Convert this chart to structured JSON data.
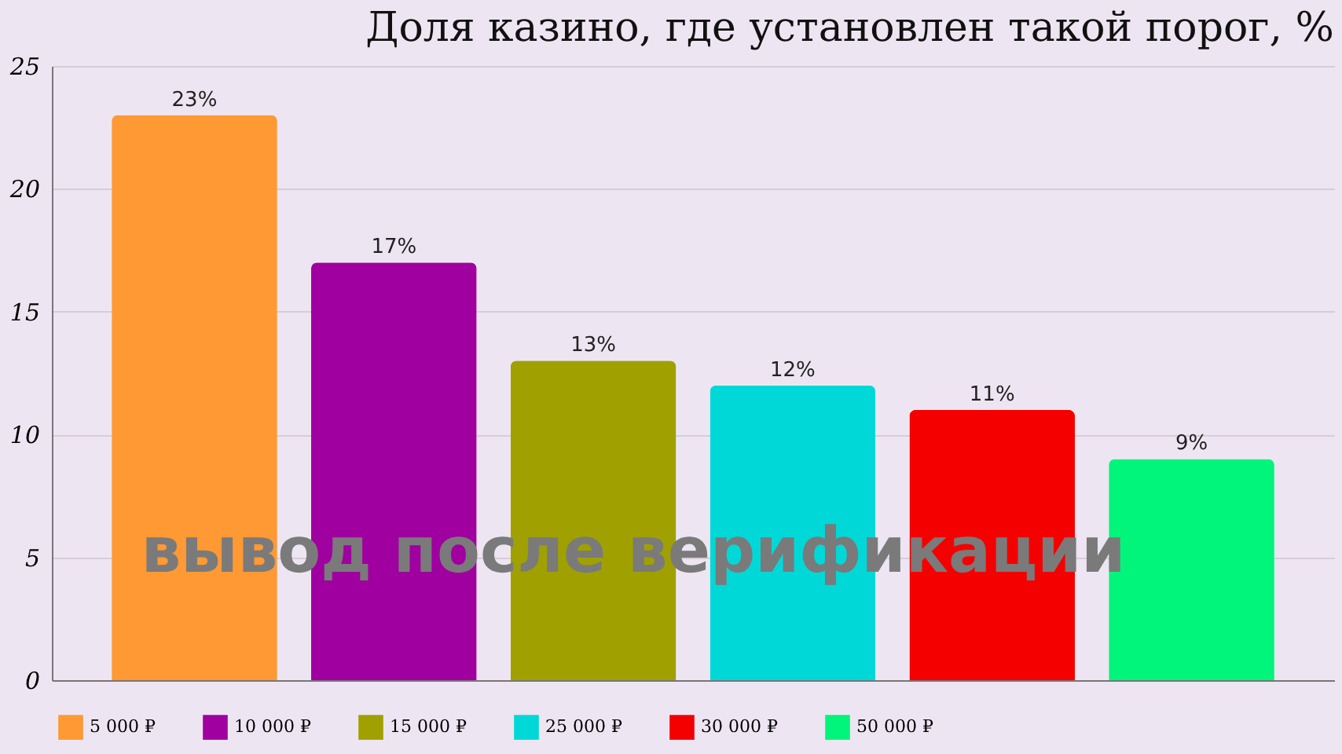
{
  "chart_data": {
    "type": "bar",
    "title": "Доля казино, где установлен такой порог, %",
    "categories": [
      null,
      null,
      null,
      null,
      null,
      null
    ],
    "series": [
      {
        "name": "5 000 ₽",
        "color": "#ff9933",
        "values": [
          23,
          null,
          null,
          null,
          null,
          null
        ],
        "value_labels": [
          "23%",
          null,
          null,
          null,
          null,
          null
        ]
      },
      {
        "name": "10 000 ₽",
        "color": "#a000a0",
        "values": [
          null,
          17,
          null,
          null,
          null,
          null
        ],
        "value_labels": [
          null,
          "17%",
          null,
          null,
          null,
          null
        ]
      },
      {
        "name": "15 000 ₽",
        "color": "#a0a000",
        "values": [
          null,
          null,
          13,
          null,
          null,
          null
        ],
        "value_labels": [
          null,
          null,
          "13%",
          null,
          null,
          null
        ]
      },
      {
        "name": "25 000 ₽",
        "color": "#00d8d8",
        "values": [
          null,
          null,
          null,
          12,
          null,
          null
        ],
        "value_labels": [
          null,
          null,
          null,
          "12%",
          null,
          null
        ]
      },
      {
        "name": "30 000 ₽",
        "color": "#f50000",
        "values": [
          null,
          null,
          null,
          null,
          11,
          null
        ],
        "value_labels": [
          null,
          null,
          null,
          null,
          "11%",
          null
        ]
      },
      {
        "name": "50 000 ₽",
        "color": "#00f57a",
        "values": [
          null,
          null,
          null,
          null,
          null,
          9
        ],
        "value_labels": [
          null,
          null,
          null,
          null,
          null,
          "9%"
        ]
      }
    ],
    "ylim": [
      0,
      25
    ],
    "yticks": [
      0,
      5,
      10,
      15,
      20,
      25
    ],
    "grid": "y",
    "legend": "bottom",
    "tick_labels": "y",
    "annotations": [
      "вывод после верификации"
    ]
  }
}
